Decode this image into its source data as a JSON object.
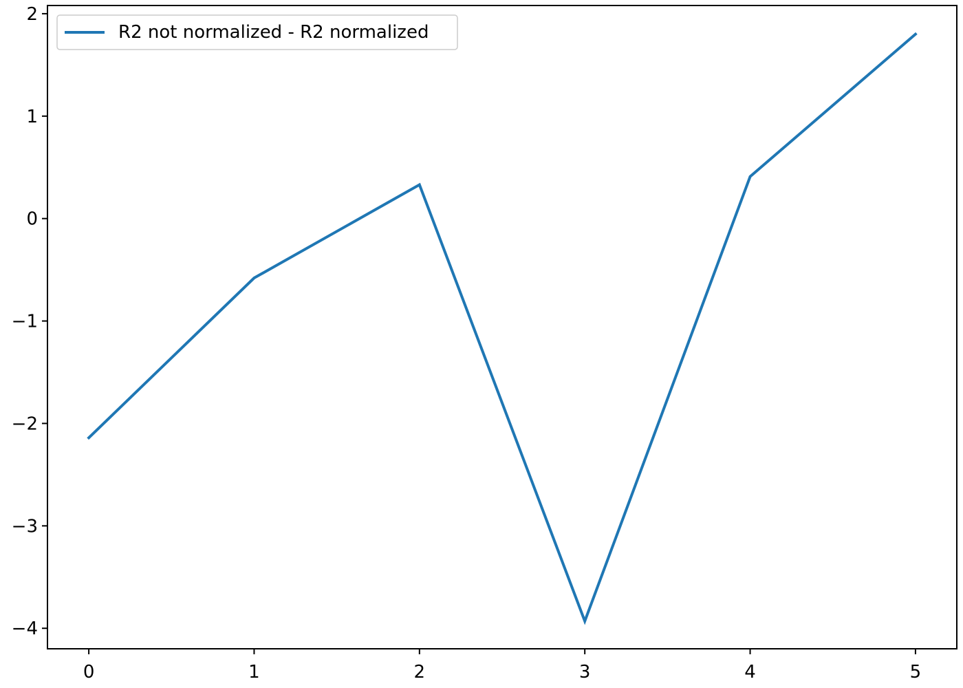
{
  "chart_data": {
    "type": "line",
    "title": "",
    "xlabel": "",
    "ylabel": "",
    "x": [
      0,
      1,
      2,
      3,
      4,
      5
    ],
    "xlim": [
      -0.25,
      5.25
    ],
    "ylim": [
      -4.2,
      2.08
    ],
    "xticks": [
      0,
      1,
      2,
      3,
      4,
      5
    ],
    "yticks": [
      2,
      1,
      0,
      -1,
      -2,
      -3,
      -4
    ],
    "xtick_labels": [
      "0",
      "1",
      "2",
      "3",
      "4",
      "5"
    ],
    "ytick_labels": [
      "2",
      "1",
      "0",
      "−1",
      "−2",
      "−3",
      "−4"
    ],
    "grid": false,
    "legend_position": "top-left",
    "series": [
      {
        "name": "R2 not normalized - R2 normalized",
        "color": "#1f77b4",
        "values": [
          -2.14,
          -0.58,
          0.33,
          -3.93,
          0.41,
          1.8
        ]
      }
    ]
  }
}
